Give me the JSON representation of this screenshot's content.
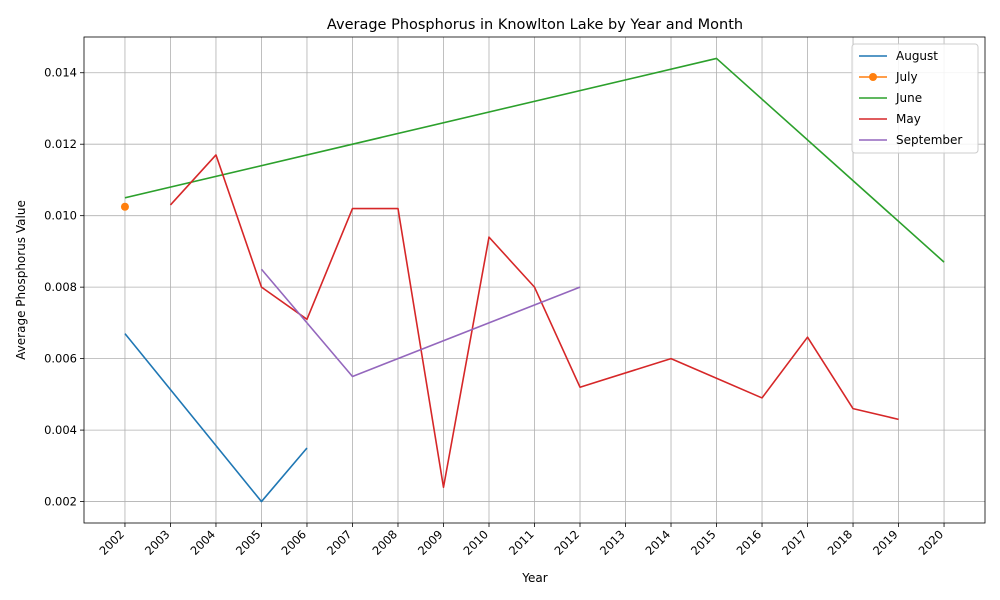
{
  "chart_data": {
    "type": "line",
    "title": "Average Phosphorus in Knowlton Lake by Year and Month",
    "xlabel": "Year",
    "ylabel": "Average Phosphorus Value",
    "xlim": [
      2001.1,
      2020.9
    ],
    "ylim": [
      0.0014,
      0.015
    ],
    "x_ticks": [
      2002,
      2003,
      2004,
      2005,
      2006,
      2007,
      2008,
      2009,
      2010,
      2011,
      2012,
      2013,
      2014,
      2015,
      2016,
      2017,
      2018,
      2019,
      2020
    ],
    "y_ticks": [
      0.002,
      0.004,
      0.006,
      0.008,
      0.01,
      0.012,
      0.014
    ],
    "y_tick_labels": [
      "0.002",
      "0.004",
      "0.006",
      "0.008",
      "0.010",
      "0.012",
      "0.014"
    ],
    "grid": true,
    "legend_position": "top-right",
    "series": [
      {
        "name": "August",
        "color": "#1f77b4",
        "marker": false,
        "x": [
          2002,
          2005,
          2006
        ],
        "y": [
          0.0067,
          0.002,
          0.0035
        ]
      },
      {
        "name": "July",
        "color": "#ff7f0e",
        "marker": true,
        "x": [
          2002
        ],
        "y": [
          0.01025
        ]
      },
      {
        "name": "June",
        "color": "#2ca02c",
        "marker": false,
        "x": [
          2002,
          2015,
          2020
        ],
        "y": [
          0.0105,
          0.0144,
          0.0087
        ]
      },
      {
        "name": "May",
        "color": "#d62728",
        "marker": false,
        "x": [
          2003,
          2004,
          2005,
          2006,
          2007,
          2008,
          2009,
          2010,
          2011,
          2012,
          2014,
          2016,
          2017,
          2018,
          2019
        ],
        "y": [
          0.0103,
          0.0117,
          0.008,
          0.0071,
          0.0102,
          0.0102,
          0.0024,
          0.0094,
          0.008,
          0.0052,
          0.006,
          0.0049,
          0.0066,
          0.0046,
          0.0043
        ]
      },
      {
        "name": "September",
        "color": "#9467bd",
        "marker": false,
        "x": [
          2005,
          2007,
          2012
        ],
        "y": [
          0.0085,
          0.0055,
          0.008
        ]
      }
    ]
  }
}
